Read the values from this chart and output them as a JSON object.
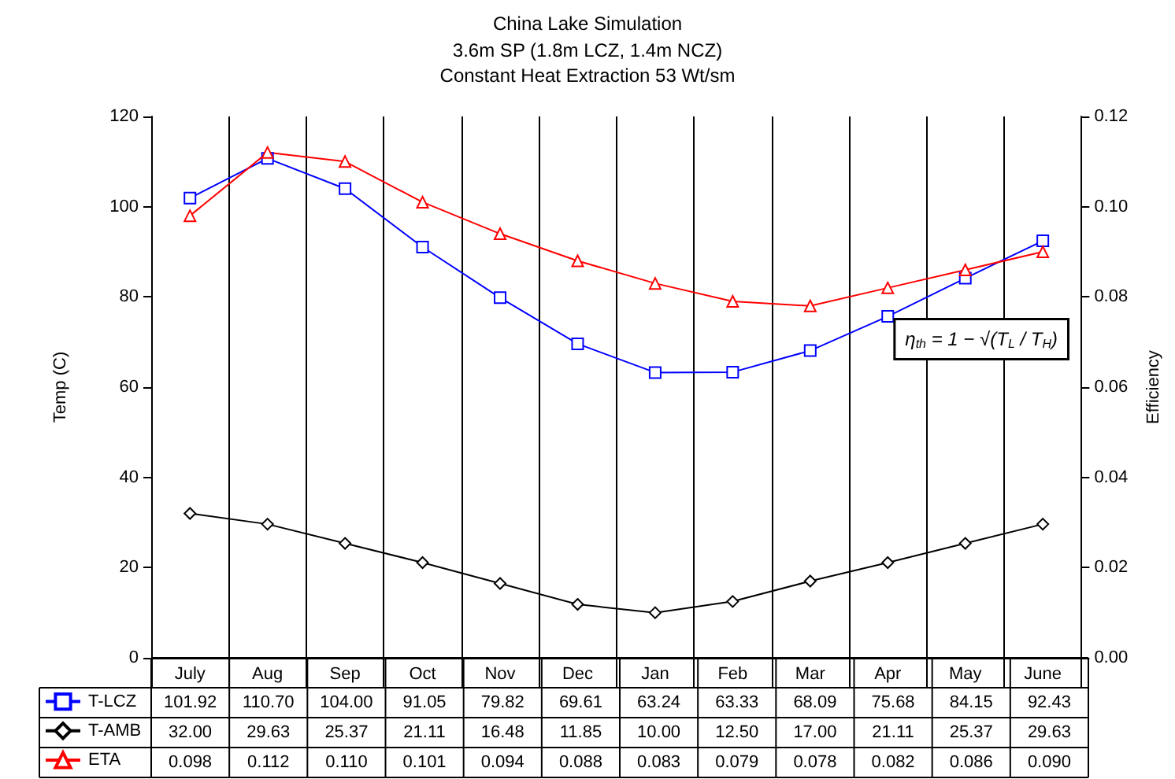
{
  "chart_data": {
    "type": "line",
    "title": "China Lake Simulation",
    "subtitle": "3.6m SP (1.8m LCZ, 1.4m NCZ)\nConstant Heat Extraction 53 Wt/sm",
    "ylabel": "Temp (C)",
    "y2label": "Efficiency",
    "categories": [
      "July",
      "Aug",
      "Sep",
      "Oct",
      "Nov",
      "Dec",
      "Jan",
      "Feb",
      "Mar",
      "Apr",
      "May",
      "June"
    ],
    "series": [
      {
        "name": "T-LCZ",
        "color": "#0000ff",
        "marker": "square",
        "values": [
          101.92,
          110.7,
          104.0,
          91.05,
          79.82,
          69.61,
          63.24,
          63.33,
          68.09,
          75.68,
          84.15,
          92.43
        ],
        "value_labels": [
          "101.92",
          "110.70",
          "104.00",
          "91.05",
          "79.82",
          "69.61",
          "63.24",
          "63.33",
          "68.09",
          "75.68",
          "84.15",
          "92.43"
        ]
      },
      {
        "name": "T-AMB",
        "color": "#000000",
        "marker": "diamond",
        "values": [
          32.0,
          29.63,
          25.37,
          21.11,
          16.48,
          11.85,
          10.0,
          12.5,
          17.0,
          21.11,
          25.37,
          29.63
        ],
        "value_labels": [
          "32.00",
          "29.63",
          "25.37",
          "21.11",
          "16.48",
          "11.85",
          "10.00",
          "12.50",
          "17.00",
          "21.11",
          "25.37",
          "29.63"
        ]
      },
      {
        "name": "ETA",
        "color": "#ff0000",
        "marker": "triangle",
        "axis": "y2",
        "values": [
          0.098,
          0.112,
          0.11,
          0.101,
          0.094,
          0.088,
          0.083,
          0.079,
          0.078,
          0.082,
          0.086,
          0.09
        ],
        "value_labels": [
          "0.098",
          "0.112",
          "0.110",
          "0.101",
          "0.094",
          "0.088",
          "0.083",
          "0.079",
          "0.078",
          "0.082",
          "0.086",
          "0.090"
        ]
      }
    ],
    "ylim": [
      0,
      120
    ],
    "yticks": [
      0,
      20,
      40,
      60,
      80,
      100,
      120
    ],
    "y2lim": [
      0,
      0.12
    ],
    "y2ticks": [
      {
        "value": 0,
        "label": "0.00"
      },
      {
        "value": 0.02,
        "label": "0.02"
      },
      {
        "value": 0.04,
        "label": "0.04"
      },
      {
        "value": 0.06,
        "label": "0.06"
      },
      {
        "value": 0.08,
        "label": "0.08"
      },
      {
        "value": 0.1,
        "label": "0.10"
      },
      {
        "value": 0.12,
        "label": "0.12"
      }
    ],
    "grid": "x",
    "legend": "bottom",
    "line_style": "solid",
    "data_labels": true,
    "annotations": [
      "η$_{th}$ = 1 − √(T$_{L}$ / T$_{H}$)"
    ]
  }
}
